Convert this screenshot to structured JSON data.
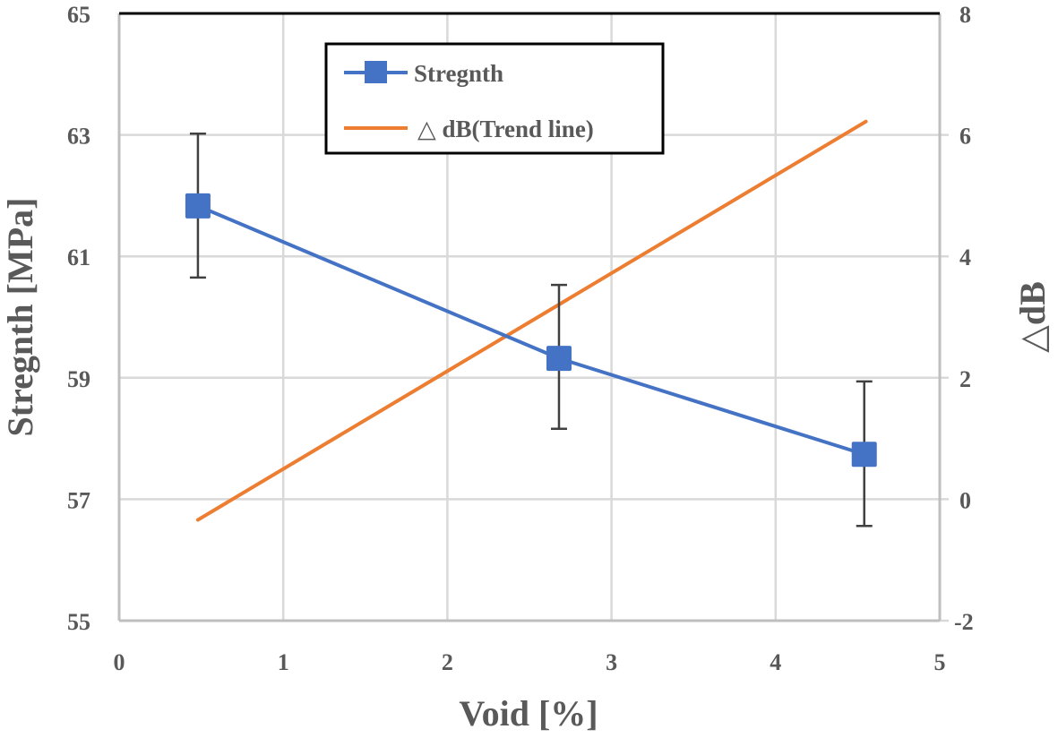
{
  "chart_data": {
    "type": "line",
    "title": "",
    "xlabel": "Void [%]",
    "ylabel": "Stregnth [MPa]",
    "y2label": "△dB",
    "xlim": [
      0,
      5
    ],
    "ylim": [
      55,
      65
    ],
    "y2lim": [
      -2,
      8
    ],
    "x_ticks": [
      "0",
      "1",
      "2",
      "3",
      "4",
      "5"
    ],
    "y_ticks": [
      "55",
      "57",
      "59",
      "61",
      "63",
      "65"
    ],
    "y2_ticks": [
      "-2",
      "0",
      "2",
      "4",
      "6",
      "8"
    ],
    "grid": true,
    "legend_position": "top-center",
    "series": [
      {
        "name": "Stregnth",
        "axis": "left",
        "color": "#4472C4",
        "marker": "square",
        "x": [
          0.48,
          2.68,
          4.54
        ],
        "y": [
          61.83,
          59.32,
          57.74
        ],
        "error_upper": [
          63.02,
          60.53,
          58.94
        ],
        "error_lower": [
          60.65,
          58.16,
          56.56
        ]
      },
      {
        "name": "△ dB(Trend line)",
        "axis": "right",
        "color": "#ED7D31",
        "marker": "none",
        "x": [
          0.48,
          4.55
        ],
        "y": [
          -0.34,
          6.22
        ]
      }
    ]
  },
  "legend": {
    "items": [
      "Stregnth",
      "△ dB(Trend line)"
    ]
  },
  "colors": {
    "grid": "#d9d9d9",
    "axis_text": "#595959",
    "error_bar": "#404040",
    "frame_top": "#000000"
  }
}
